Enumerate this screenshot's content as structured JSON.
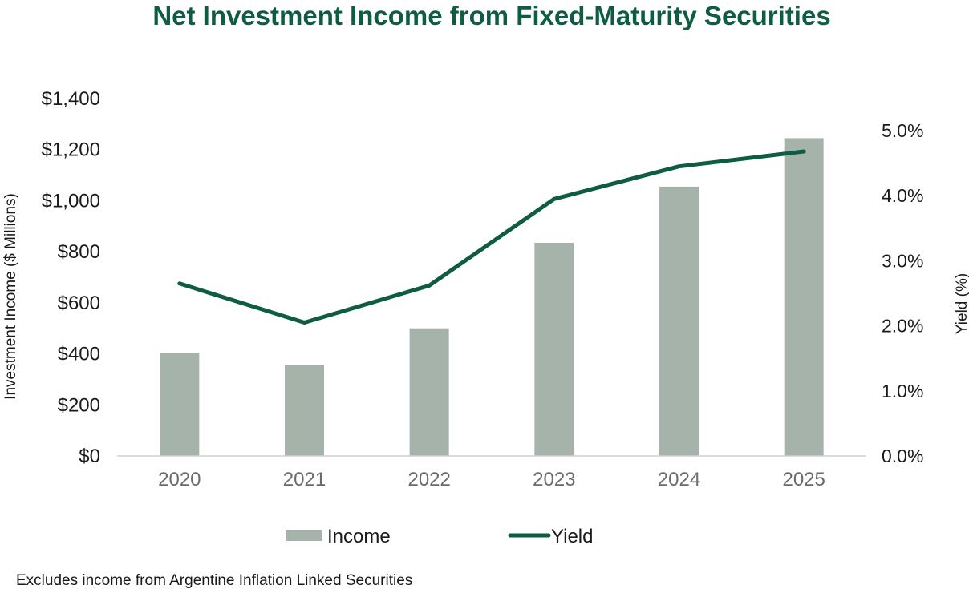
{
  "chart_data": {
    "type": "bar",
    "title": "Net Investment Income from Fixed-Maturity Securities",
    "categories": [
      "2020",
      "2021",
      "2022",
      "2023",
      "2024",
      "2025"
    ],
    "series": [
      {
        "name": "Income",
        "type": "bar",
        "axis": "left",
        "values": [
          405,
          355,
          500,
          835,
          1055,
          1245
        ]
      },
      {
        "name": "Yield",
        "type": "line",
        "axis": "right",
        "values": [
          2.65,
          2.05,
          2.62,
          3.95,
          4.45,
          4.68
        ]
      }
    ],
    "y_left": {
      "label": "Investment Income  ($ Millions)",
      "range": [
        0,
        1400
      ],
      "ticks": [
        {
          "value": 0,
          "label": "$0"
        },
        {
          "value": 200,
          "label": "$200"
        },
        {
          "value": 400,
          "label": "$400"
        },
        {
          "value": 600,
          "label": "$600"
        },
        {
          "value": 800,
          "label": "$800"
        },
        {
          "value": 1000,
          "label": "$1,000"
        },
        {
          "value": 1200,
          "label": "$1,200"
        },
        {
          "value": 1400,
          "label": "$1,400"
        }
      ]
    },
    "y_right": {
      "label": "Yield (%)",
      "range": [
        0,
        5.5
      ],
      "ticks": [
        {
          "value": 0,
          "label": "0.0%"
        },
        {
          "value": 1,
          "label": "1.0%"
        },
        {
          "value": 2,
          "label": "2.0%"
        },
        {
          "value": 3,
          "label": "3.0%"
        },
        {
          "value": 4,
          "label": "4.0%"
        },
        {
          "value": 5,
          "label": "5.0%"
        }
      ]
    },
    "grid": false,
    "legend_position": "bottom",
    "footnote": "Excludes income from Argentine Inflation Linked Securities"
  },
  "colors": {
    "title": "#0f5c44",
    "bar": "#a6b3ab",
    "line": "#0f5c44",
    "axis": "#d0d0d0"
  }
}
